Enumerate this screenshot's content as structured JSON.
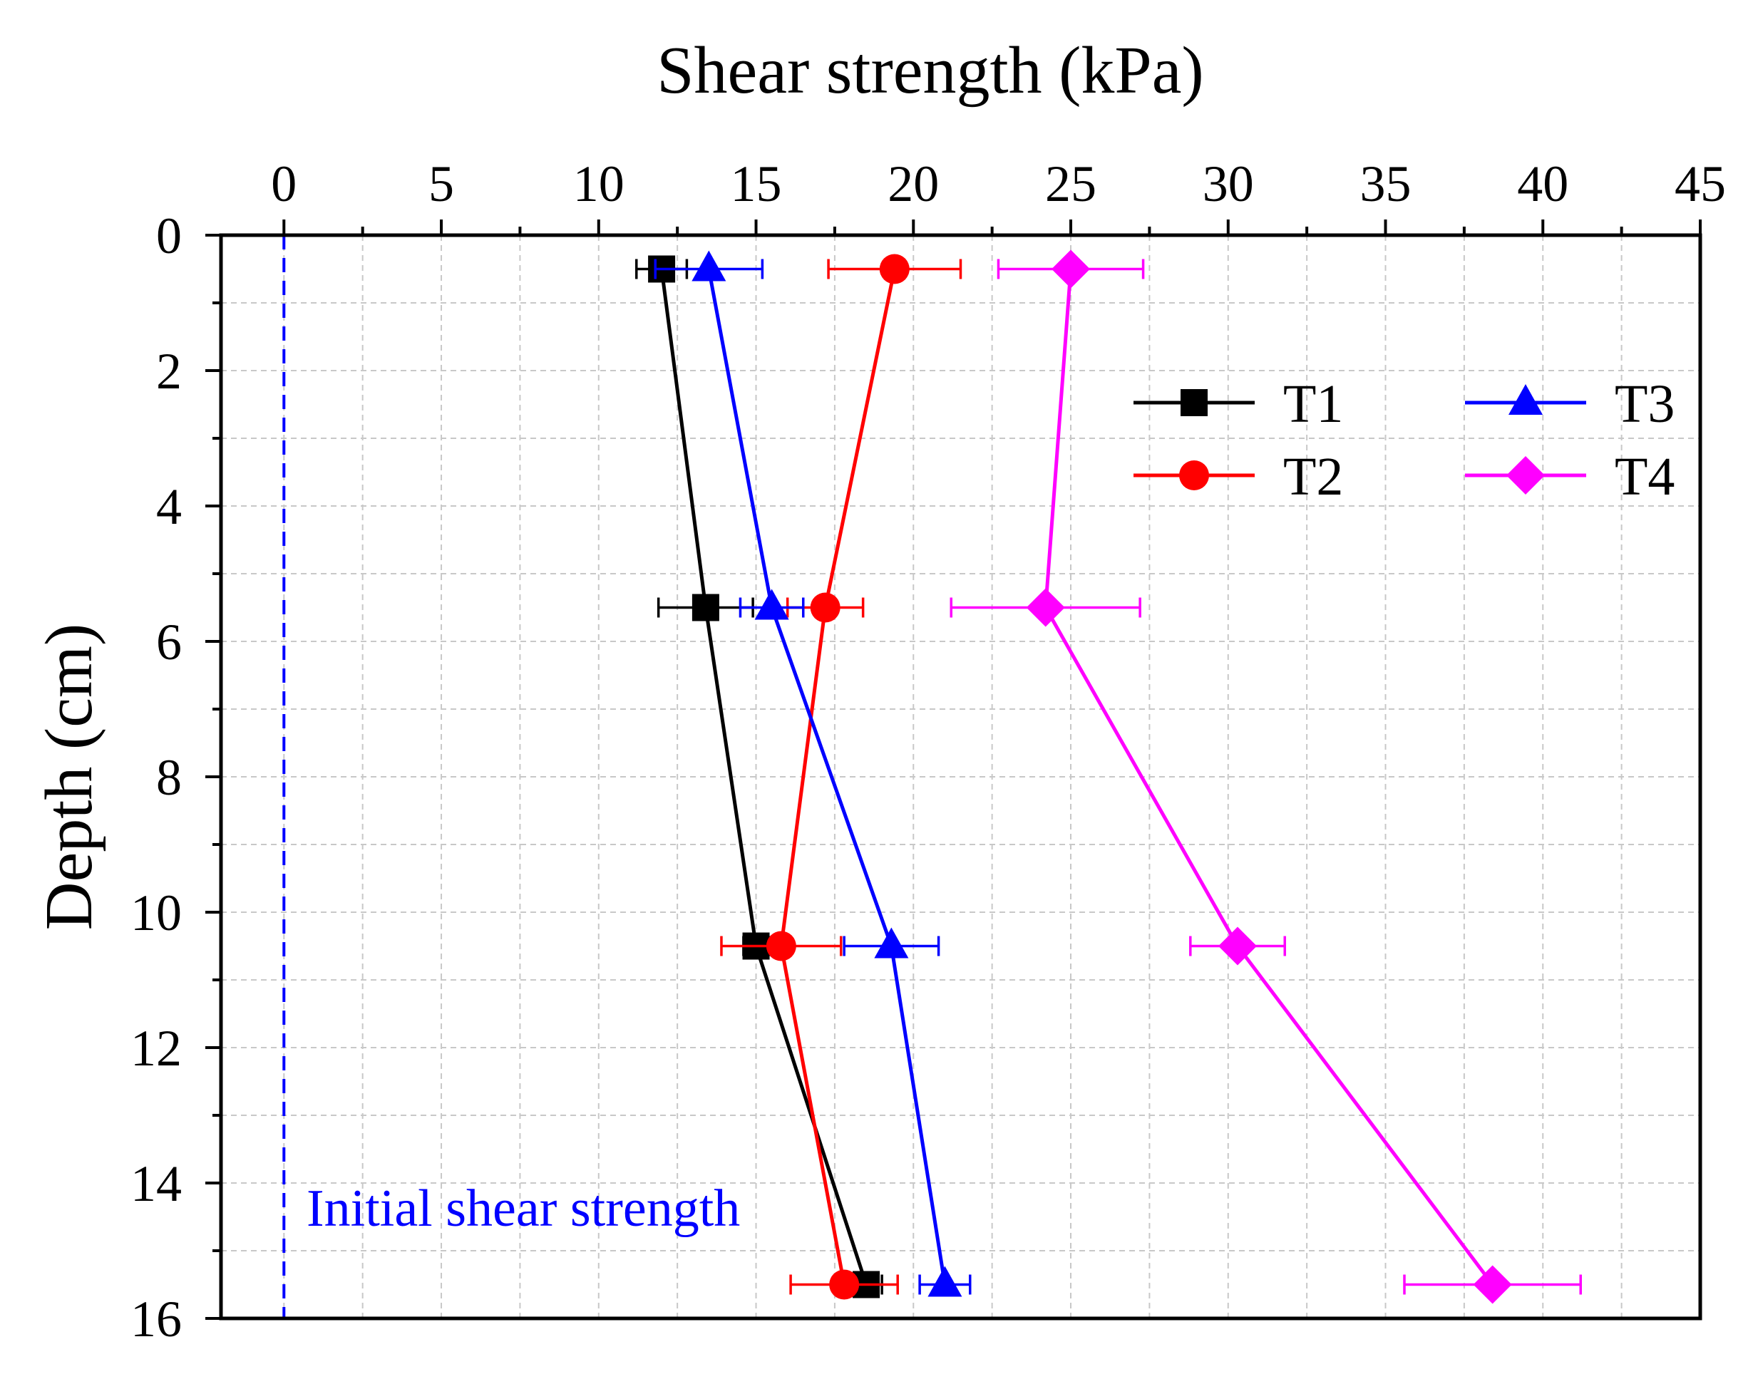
{
  "chart_data": {
    "type": "line",
    "xlabel": "Shear strength (kPa)",
    "ylabel": "Depth (cm)",
    "x_axis_position": "top",
    "y_axis_inverted": true,
    "xlim": [
      -2,
      45
    ],
    "ylim": [
      0,
      16
    ],
    "x_ticks": [
      0,
      5,
      10,
      15,
      20,
      25,
      30,
      35,
      40,
      45
    ],
    "y_ticks": [
      0,
      2,
      4,
      6,
      8,
      10,
      12,
      14,
      16
    ],
    "grid": true,
    "legend_position": "top-right",
    "series": [
      {
        "name": "T1",
        "color": "#000000",
        "marker": "square",
        "points": [
          {
            "x": 12.0,
            "y": 0.5,
            "err": 0.8
          },
          {
            "x": 13.4,
            "y": 5.5,
            "err": 1.5
          },
          {
            "x": 15.0,
            "y": 10.5,
            "err": 0.4
          },
          {
            "x": 18.5,
            "y": 15.5,
            "err": 0.5
          }
        ]
      },
      {
        "name": "T2",
        "color": "#ff0000",
        "marker": "circle",
        "points": [
          {
            "x": 19.4,
            "y": 0.5,
            "err": 2.1
          },
          {
            "x": 17.2,
            "y": 5.5,
            "err": 1.2
          },
          {
            "x": 15.8,
            "y": 10.5,
            "err": 1.9
          },
          {
            "x": 17.8,
            "y": 15.5,
            "err": 1.7
          }
        ]
      },
      {
        "name": "T3",
        "color": "#0000ff",
        "marker": "triangle",
        "points": [
          {
            "x": 13.5,
            "y": 0.5,
            "err": 1.7
          },
          {
            "x": 15.5,
            "y": 5.5,
            "err": 1.0
          },
          {
            "x": 19.3,
            "y": 10.5,
            "err": 1.5
          },
          {
            "x": 21.0,
            "y": 15.5,
            "err": 0.8
          }
        ]
      },
      {
        "name": "T4",
        "color": "#ff00ff",
        "marker": "diamond",
        "points": [
          {
            "x": 25.0,
            "y": 0.5,
            "err": 2.3
          },
          {
            "x": 24.2,
            "y": 5.5,
            "err": 3.0
          },
          {
            "x": 30.3,
            "y": 10.5,
            "err": 1.5
          },
          {
            "x": 38.4,
            "y": 15.5,
            "err": 2.8
          }
        ]
      }
    ],
    "reference_line": {
      "x": 0,
      "color": "#0000ff",
      "style": "dashed"
    },
    "annotation": {
      "text": "Initial shear strength",
      "color": "#0000ff"
    }
  }
}
